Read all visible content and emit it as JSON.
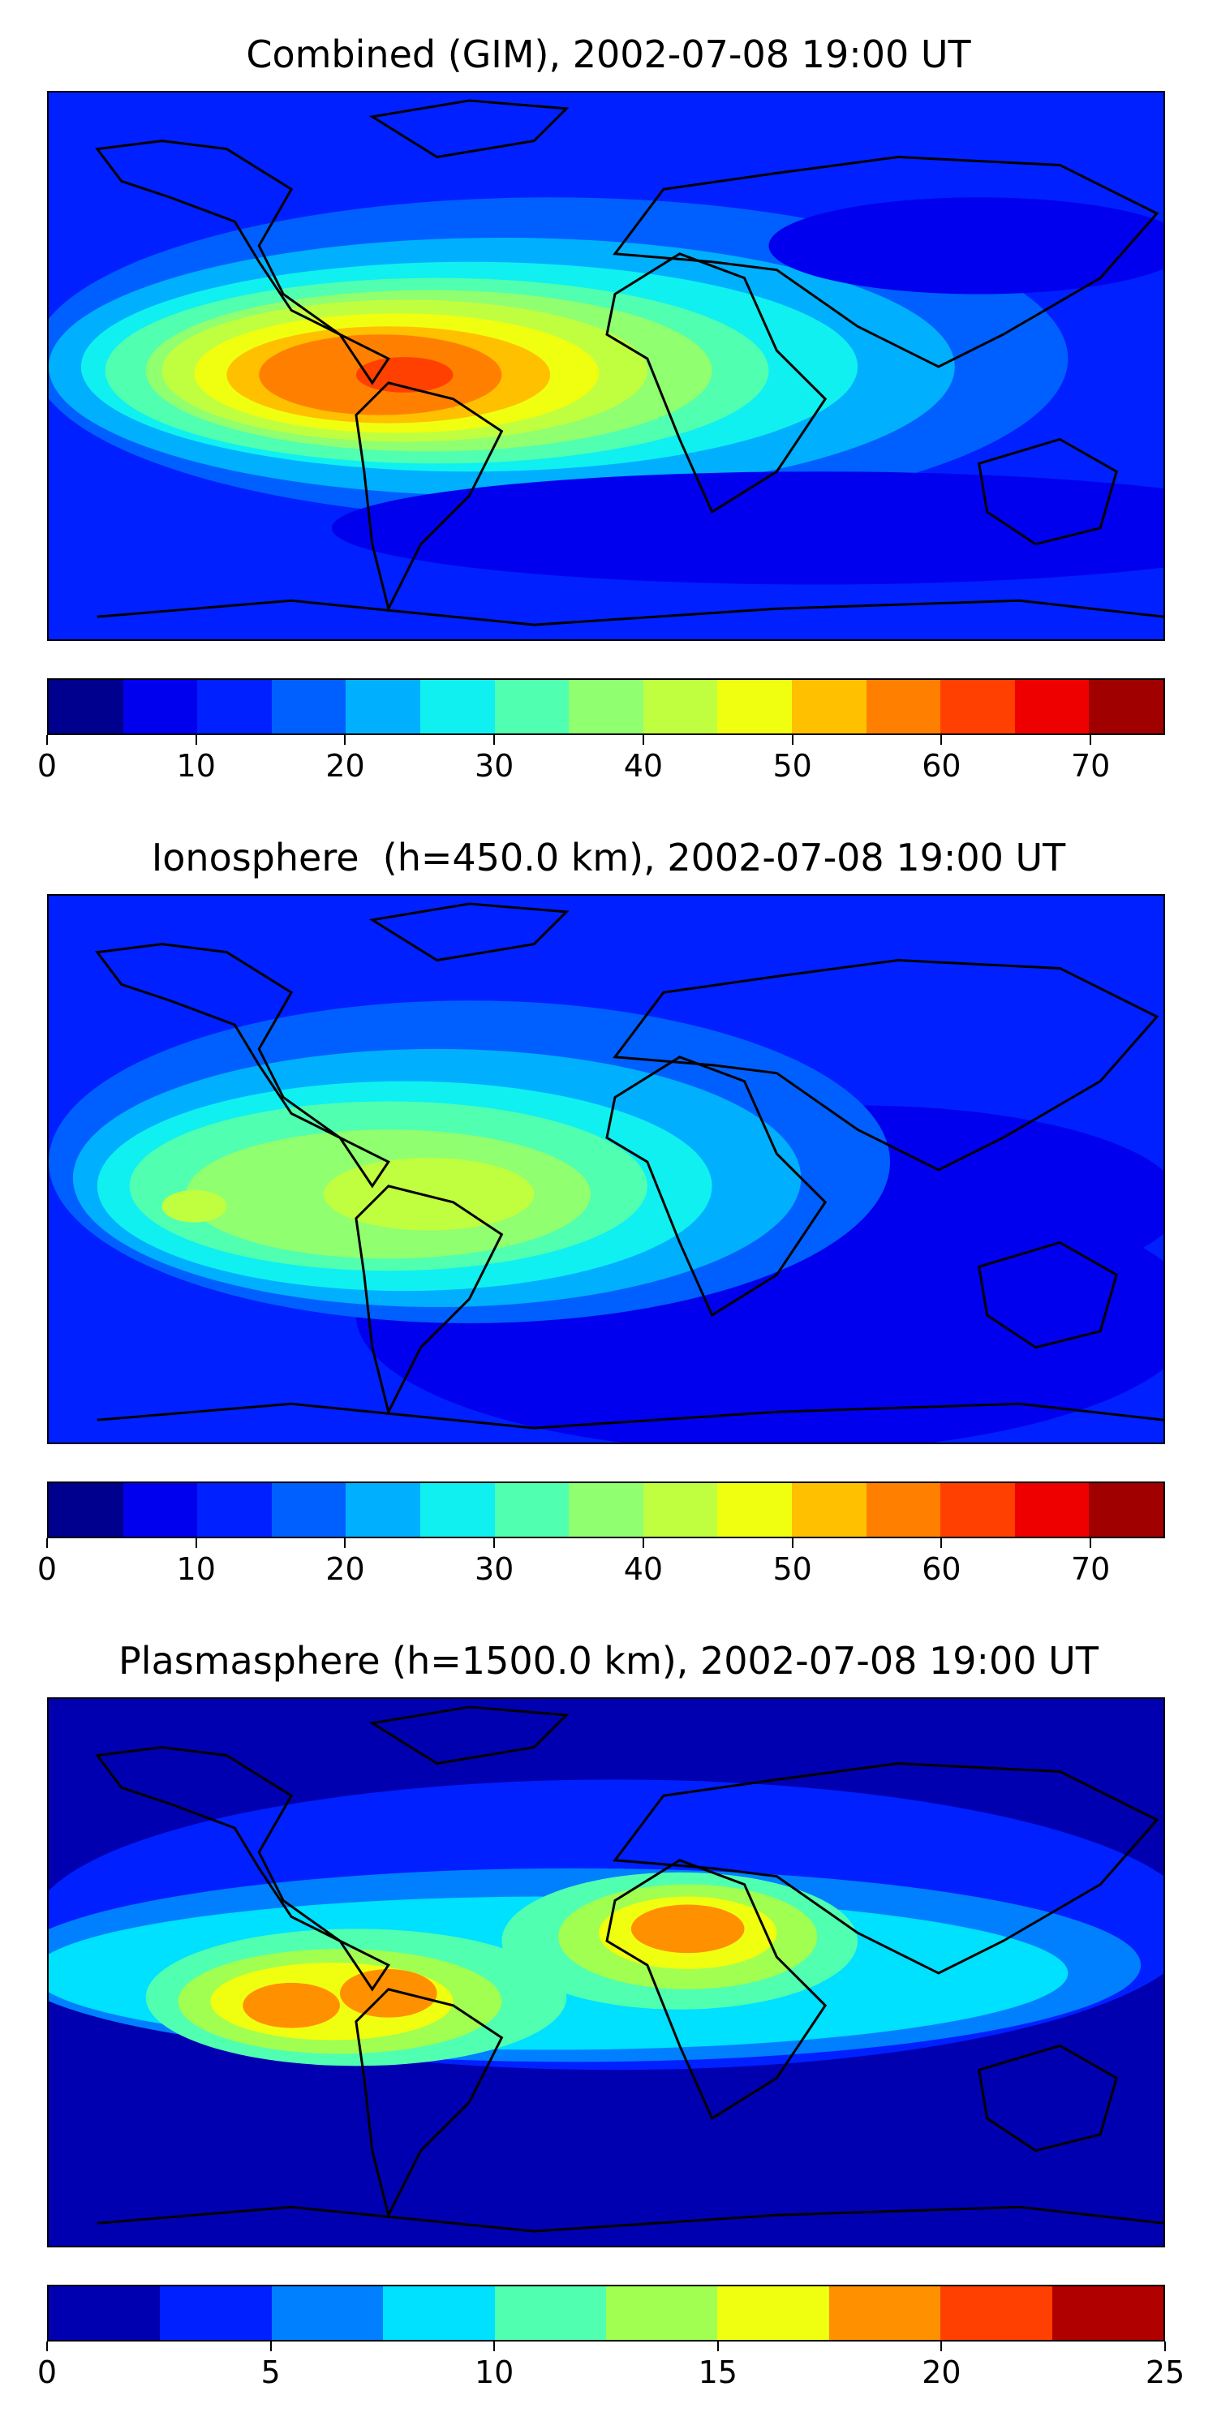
{
  "panels": [
    {
      "title": "Combined (GIM), 2002-07-08 19:00 UT",
      "colorbar": {
        "colors": [
          "#00008f",
          "#0000ef",
          "#0020ff",
          "#0060ff",
          "#00b0ff",
          "#10f0f0",
          "#50ffb0",
          "#90ff70",
          "#c0ff40",
          "#f0ff10",
          "#ffc000",
          "#ff8000",
          "#ff4000",
          "#ef0000",
          "#a00000"
        ],
        "ticks": [
          "0",
          "10",
          "20",
          "30",
          "40",
          "50",
          "60",
          "70"
        ],
        "tick_values": [
          0,
          10,
          20,
          30,
          40,
          50,
          60,
          70
        ],
        "range": [
          0,
          75
        ]
      }
    },
    {
      "title": "Ionosphere  (h=450.0 km), 2002-07-08 19:00 UT",
      "colorbar": {
        "colors": [
          "#00008f",
          "#0000ef",
          "#0020ff",
          "#0060ff",
          "#00b0ff",
          "#10f0f0",
          "#50ffb0",
          "#90ff70",
          "#c0ff40",
          "#f0ff10",
          "#ffc000",
          "#ff8000",
          "#ff4000",
          "#ef0000",
          "#a00000"
        ],
        "ticks": [
          "0",
          "10",
          "20",
          "30",
          "40",
          "50",
          "60",
          "70"
        ],
        "tick_values": [
          0,
          10,
          20,
          30,
          40,
          50,
          60,
          70
        ],
        "range": [
          0,
          75
        ]
      }
    },
    {
      "title": "Plasmasphere (h=1500.0 km), 2002-07-08 19:00 UT",
      "colorbar": {
        "colors": [
          "#0000b0",
          "#0020ff",
          "#0080ff",
          "#00e0ff",
          "#50ffb0",
          "#a0ff50",
          "#f0ff10",
          "#ff9000",
          "#ff4000",
          "#b00000"
        ],
        "ticks": [
          "0",
          "5",
          "10",
          "15",
          "20",
          "25"
        ],
        "tick_values": [
          0,
          5,
          10,
          15,
          20,
          25
        ],
        "range": [
          0,
          25
        ]
      }
    }
  ]
}
